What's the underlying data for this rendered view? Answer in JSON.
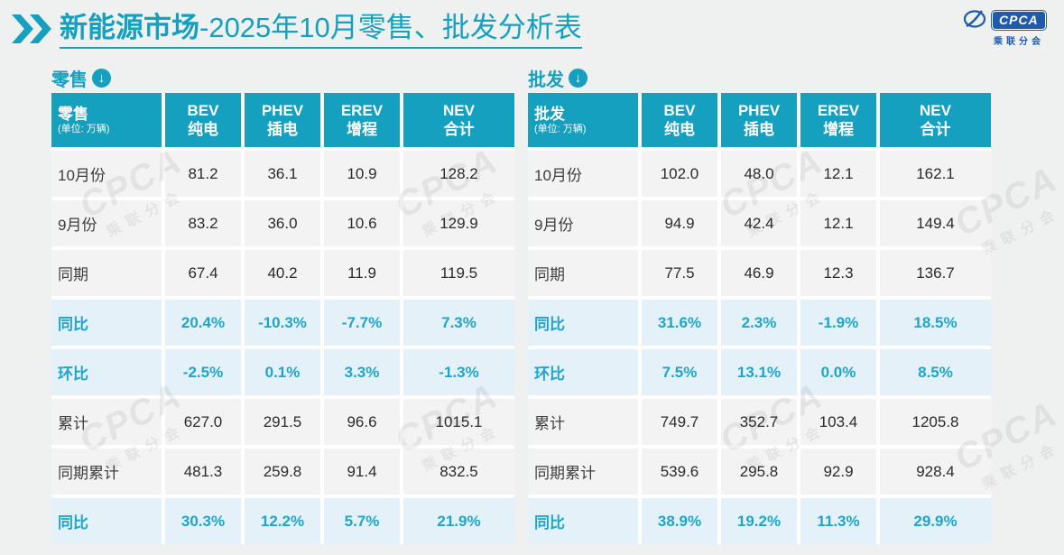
{
  "page": {
    "background": "#eff1f0",
    "accent": "#14a0be",
    "row_bg": "#f3f3f4",
    "highlight_bg": "#e4f1f9",
    "highlight_text": "#1fa5c9",
    "logo_blue": "#1e5bab"
  },
  "header": {
    "title_emphasis": "新能源市场",
    "title_rest": "-2025年10月零售、批发分析表",
    "logo_text": "CPCA",
    "logo_subtext": "乘联分会"
  },
  "watermark": {
    "text": "CPCA",
    "subtext": "乘联分会"
  },
  "tables": [
    {
      "id": "retail",
      "section_label": "零售",
      "arrow": "↓",
      "corner_title": "零售",
      "corner_unit": "(单位: 万辆)",
      "columns": [
        {
          "l1": "BEV",
          "l2": "纯电"
        },
        {
          "l1": "PHEV",
          "l2": "插电"
        },
        {
          "l1": "EREV",
          "l2": "增程"
        },
        {
          "l1": "NEV",
          "l2": "合计"
        }
      ],
      "rows": [
        {
          "label": "10月份",
          "values": [
            "81.2",
            "36.1",
            "10.9",
            "128.2"
          ],
          "highlight": false
        },
        {
          "label": "9月份",
          "values": [
            "83.2",
            "36.0",
            "10.6",
            "129.9"
          ],
          "highlight": false
        },
        {
          "label": "同期",
          "values": [
            "67.4",
            "40.2",
            "11.9",
            "119.5"
          ],
          "highlight": false
        },
        {
          "label": "同比",
          "values": [
            "20.4%",
            "-10.3%",
            "-7.7%",
            "7.3%"
          ],
          "highlight": true
        },
        {
          "label": "环比",
          "values": [
            "-2.5%",
            "0.1%",
            "3.3%",
            "-1.3%"
          ],
          "highlight": true
        },
        {
          "label": "累计",
          "values": [
            "627.0",
            "291.5",
            "96.6",
            "1015.1"
          ],
          "highlight": false
        },
        {
          "label": "同期累计",
          "values": [
            "481.3",
            "259.8",
            "91.4",
            "832.5"
          ],
          "highlight": false
        },
        {
          "label": "同比",
          "values": [
            "30.3%",
            "12.2%",
            "5.7%",
            "21.9%"
          ],
          "highlight": true
        }
      ]
    },
    {
      "id": "wholesale",
      "section_label": "批发",
      "arrow": "↓",
      "corner_title": "批发",
      "corner_unit": "(单位: 万辆)",
      "columns": [
        {
          "l1": "BEV",
          "l2": "纯电"
        },
        {
          "l1": "PHEV",
          "l2": "插电"
        },
        {
          "l1": "EREV",
          "l2": "增程"
        },
        {
          "l1": "NEV",
          "l2": "合计"
        }
      ],
      "rows": [
        {
          "label": "10月份",
          "values": [
            "102.0",
            "48.0",
            "12.1",
            "162.1"
          ],
          "highlight": false
        },
        {
          "label": "9月份",
          "values": [
            "94.9",
            "42.4",
            "12.1",
            "149.4"
          ],
          "highlight": false
        },
        {
          "label": "同期",
          "values": [
            "77.5",
            "46.9",
            "12.3",
            "136.7"
          ],
          "highlight": false
        },
        {
          "label": "同比",
          "values": [
            "31.6%",
            "2.3%",
            "-1.9%",
            "18.5%"
          ],
          "highlight": true
        },
        {
          "label": "环比",
          "values": [
            "7.5%",
            "13.1%",
            "0.0%",
            "8.5%"
          ],
          "highlight": true
        },
        {
          "label": "累计",
          "values": [
            "749.7",
            "352.7",
            "103.4",
            "1205.8"
          ],
          "highlight": false
        },
        {
          "label": "同期累计",
          "values": [
            "539.6",
            "295.8",
            "92.9",
            "928.4"
          ],
          "highlight": false
        },
        {
          "label": "同比",
          "values": [
            "38.9%",
            "19.2%",
            "11.3%",
            "29.9%"
          ],
          "highlight": true
        }
      ]
    }
  ]
}
